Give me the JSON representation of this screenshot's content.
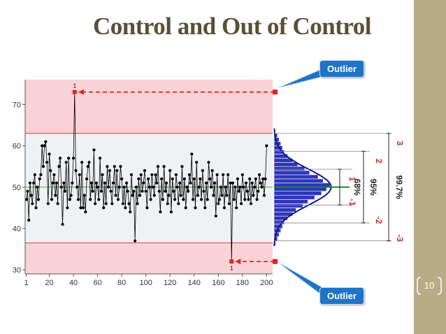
{
  "slide": {
    "title": "Control and Out of Control",
    "page_number": "10",
    "callout_top": "Outlier",
    "callout_bottom": "Outlier"
  },
  "colors": {
    "out_of_control_zone": "#f9d3d6",
    "in_control_zone": "#eef2f4",
    "control_limit": "#e8353b",
    "center_line": "#33bb33",
    "series": "#000000",
    "histogram_fill": "#2f36b8",
    "normal_curve": "#0d1a8a",
    "sigma_markers": "#d42a1e",
    "accent_bar": "#b7ac85",
    "callout": "#1f74c8"
  },
  "chart_data": {
    "type": "line",
    "xlim": [
      0,
      205
    ],
    "ylim": [
      29,
      76
    ],
    "x_ticks": [
      1,
      20,
      40,
      60,
      80,
      100,
      120,
      140,
      160,
      180,
      200
    ],
    "y_ticks": [
      30,
      40,
      50,
      60,
      70
    ],
    "center_line": 50,
    "upper_control_limit": 63,
    "lower_control_limit": 36.5,
    "outliers": [
      {
        "x": 41,
        "y": 73,
        "label": "1"
      },
      {
        "x": 171,
        "y": 32,
        "label": "1"
      }
    ],
    "values": [
      47,
      49,
      42,
      51,
      48,
      46,
      51,
      53,
      45,
      50,
      47,
      52,
      53,
      60,
      55,
      60,
      61,
      56,
      46,
      58,
      54,
      47,
      51,
      53,
      48,
      51,
      46,
      55,
      57,
      50,
      41,
      51,
      49,
      56,
      45,
      57,
      47,
      48,
      51,
      57,
      73,
      54,
      50,
      47,
      53,
      45,
      56,
      45,
      48,
      44,
      52,
      55,
      56,
      47,
      51,
      49,
      59,
      46,
      51,
      50,
      47,
      57,
      49,
      53,
      45,
      51,
      46,
      55,
      50,
      54,
      49,
      46,
      51,
      55,
      48,
      54,
      47,
      50,
      55,
      52,
      46,
      50,
      45,
      51,
      49,
      46,
      44,
      53,
      48,
      49,
      37,
      50,
      46,
      52,
      48,
      53,
      49,
      51,
      54,
      49,
      45,
      52,
      50,
      47,
      53,
      50,
      48,
      53,
      51,
      55,
      49,
      44,
      52,
      47,
      55,
      49,
      51,
      46,
      48,
      54,
      44,
      52,
      49,
      47,
      53,
      50,
      46,
      51,
      48,
      55,
      47,
      52,
      45,
      50,
      49,
      53,
      51,
      58,
      47,
      52,
      45,
      56,
      48,
      50,
      52,
      47,
      54,
      49,
      45,
      51,
      47,
      56,
      52,
      50,
      54,
      48,
      51,
      43,
      53,
      46,
      47,
      50,
      48,
      53,
      45,
      50,
      48,
      53,
      46,
      51,
      32,
      51,
      47,
      50,
      45,
      52,
      49,
      50,
      46,
      53,
      50,
      47,
      51,
      49,
      47,
      52,
      46,
      51,
      48,
      50,
      52,
      47,
      49,
      53,
      51,
      50,
      52,
      48,
      52,
      60
    ],
    "histogram": {
      "bin_width": 1,
      "bins": [
        {
          "value": 36.5,
          "count": 1
        },
        {
          "value": 37.5,
          "count": 2
        },
        {
          "value": 38.5,
          "count": 3
        },
        {
          "value": 39.5,
          "count": 4
        },
        {
          "value": 40.5,
          "count": 5
        },
        {
          "value": 41.5,
          "count": 6
        },
        {
          "value": 42.5,
          "count": 8
        },
        {
          "value": 43.5,
          "count": 11
        },
        {
          "value": 44.5,
          "count": 13
        },
        {
          "value": 45.5,
          "count": 17
        },
        {
          "value": 46.5,
          "count": 20
        },
        {
          "value": 47.5,
          "count": 24
        },
        {
          "value": 48.5,
          "count": 28
        },
        {
          "value": 49.5,
          "count": 31
        },
        {
          "value": 50.5,
          "count": 33
        },
        {
          "value": 51.5,
          "count": 29
        },
        {
          "value": 52.5,
          "count": 26
        },
        {
          "value": 53.5,
          "count": 21
        },
        {
          "value": 54.5,
          "count": 18
        },
        {
          "value": 55.5,
          "count": 14
        },
        {
          "value": 56.5,
          "count": 11
        },
        {
          "value": 57.5,
          "count": 8
        },
        {
          "value": 58.5,
          "count": 6
        },
        {
          "value": 59.5,
          "count": 5
        },
        {
          "value": 60.5,
          "count": 4
        },
        {
          "value": 61.5,
          "count": 3
        },
        {
          "value": 62.5,
          "count": 2
        }
      ]
    },
    "sigma_labels": [
      {
        "value": 3,
        "label": "3",
        "side": "upper"
      },
      {
        "value": 2,
        "label": "2",
        "side": "upper"
      },
      {
        "value": 1,
        "label": "1",
        "side": "upper"
      },
      {
        "value": -1,
        "label": "-1",
        "side": "lower"
      },
      {
        "value": -2,
        "label": "-2",
        "side": "lower"
      },
      {
        "value": -3,
        "label": "-3",
        "side": "lower"
      }
    ],
    "coverage": [
      {
        "sigma": 1,
        "label": "68%"
      },
      {
        "sigma": 2,
        "label": "95%"
      },
      {
        "sigma": 3,
        "label": "99.7%"
      }
    ]
  }
}
